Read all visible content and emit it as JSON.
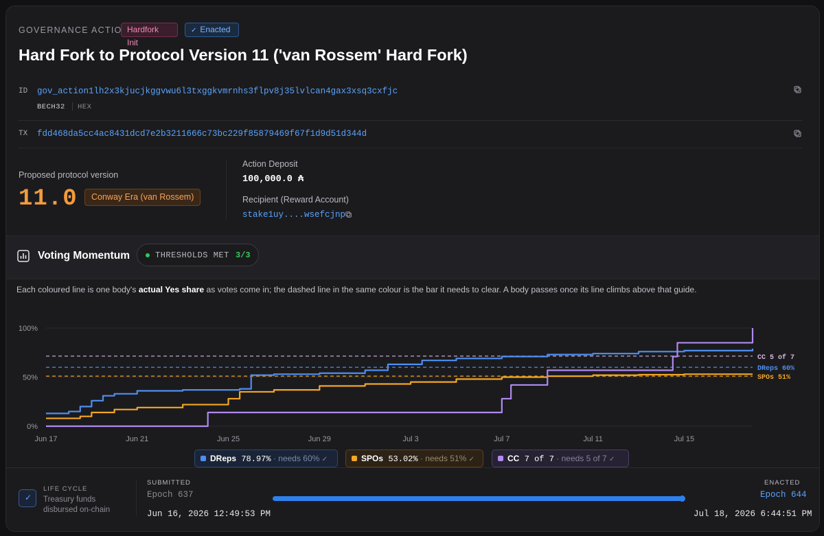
{
  "header": {
    "eyebrow": "GOVERNANCE ACTION",
    "type_badge": "Hardfork Init",
    "status_badge": "Enacted",
    "status_icon": "check-icon",
    "title": "Hard Fork to Protocol Version 11 ('van Rossem' Hard Fork)"
  },
  "identifiers": {
    "id_label": "ID",
    "id_value": "gov_action1lh2x3kjucjkggvwu6l3txggkvmrnhs3flpv8j35lvlcan4gax3xsq3cxfjc",
    "format_tabs": [
      "BECH32",
      "HEX"
    ],
    "tx_label": "TX",
    "tx_value": "fdd468da5cc4ac8431dcd7e2b3211666c73bc229f85879469f67f1d9d51d344d"
  },
  "protocol": {
    "label": "Proposed protocol version",
    "version": "11.0",
    "era": "Conway Era (van Rossem)"
  },
  "deposit": {
    "label": "Action Deposit",
    "value": "100,000.0 ₳",
    "recipient_label": "Recipient (Reward Account)",
    "recipient_value": "stake1uy....wsefcjnp"
  },
  "voting": {
    "title": "Voting Momentum",
    "thresholds_label": "THRESHOLDS MET",
    "thresholds_value": "3/3",
    "desc_pre": "Each coloured line is one body's ",
    "desc_bold": "actual Yes share",
    "desc_post": " as votes come in; the dashed line in the same colour is the bar it needs to clear. A body passes once its line climbs above that guide."
  },
  "colors": {
    "dreps": "#4f8ef0",
    "spos": "#f5a623",
    "cc": "#b08af0",
    "cc_threshold": "#d9b8e0",
    "accent": "#2f80ed",
    "green": "#34c759"
  },
  "chart_data": {
    "type": "line",
    "y_tick_labels": [
      "100%",
      "50%",
      "0%"
    ],
    "x_tick_labels": [
      "Jun 17",
      "Jun 21",
      "Jun 25",
      "Jun 29",
      "Jul 3",
      "Jul 7",
      "Jul 11",
      "Jul 15"
    ],
    "x_range": [
      "Jun 17",
      "Jul 18"
    ],
    "ylim": [
      0,
      100
    ],
    "grid": true,
    "thresholds": [
      {
        "label": "CC 5 of 7",
        "value": 71.4,
        "series": "CC"
      },
      {
        "label": "DReps 60%",
        "value": 60,
        "series": "DReps"
      },
      {
        "label": "SPOs 51%",
        "value": 51,
        "series": "SPOs"
      }
    ],
    "series": [
      {
        "name": "DReps",
        "points": [
          [
            0,
            13
          ],
          [
            1,
            15
          ],
          [
            1.5,
            20
          ],
          [
            2,
            26
          ],
          [
            2.5,
            31
          ],
          [
            3,
            33
          ],
          [
            4,
            36
          ],
          [
            6,
            37
          ],
          [
            8.5,
            38
          ],
          [
            9,
            52
          ],
          [
            10,
            53
          ],
          [
            12,
            54
          ],
          [
            14,
            57
          ],
          [
            15,
            63
          ],
          [
            16.5,
            67
          ],
          [
            18,
            69
          ],
          [
            20,
            71
          ],
          [
            22,
            73
          ],
          [
            24,
            74
          ],
          [
            26,
            76
          ],
          [
            28,
            77
          ],
          [
            31,
            79
          ]
        ]
      },
      {
        "name": "SPOs",
        "points": [
          [
            0,
            8
          ],
          [
            1.5,
            10
          ],
          [
            2,
            14
          ],
          [
            3,
            17
          ],
          [
            4,
            19
          ],
          [
            6,
            22
          ],
          [
            8,
            28
          ],
          [
            8.5,
            35
          ],
          [
            10,
            37
          ],
          [
            12,
            41
          ],
          [
            14,
            43
          ],
          [
            16,
            45
          ],
          [
            18,
            48
          ],
          [
            20,
            50
          ],
          [
            22,
            51
          ],
          [
            24,
            52
          ],
          [
            26,
            52.5
          ],
          [
            28,
            53
          ],
          [
            31,
            53
          ]
        ]
      },
      {
        "name": "CC",
        "points": [
          [
            0,
            0
          ],
          [
            7,
            0
          ],
          [
            7.1,
            14
          ],
          [
            19.9,
            14
          ],
          [
            20,
            28
          ],
          [
            20.4,
            42
          ],
          [
            22,
            57
          ],
          [
            27,
            57
          ],
          [
            27.5,
            71
          ],
          [
            27.7,
            85
          ],
          [
            31,
            100
          ]
        ]
      }
    ]
  },
  "legend": [
    {
      "name": "DReps",
      "value": "78.97%",
      "needs": "needs 60%"
    },
    {
      "name": "SPOs",
      "value": "53.02%",
      "needs": "needs 51%"
    },
    {
      "name": "CC",
      "value": "7 of 7",
      "needs": "needs 5 of 7"
    }
  ],
  "lifecycle": {
    "label": "LIFE CYCLE",
    "desc": "Treasury funds disbursed on-chain",
    "submitted_label": "SUBMITTED",
    "submitted_epoch": "Epoch 637",
    "submitted_date": "Jun 16, 2026 12:49:53 PM",
    "enacted_label": "ENACTED",
    "enacted_epoch": "Epoch 644",
    "enacted_date": "Jul 18, 2026 6:44:51 PM",
    "progress": 1.0
  }
}
